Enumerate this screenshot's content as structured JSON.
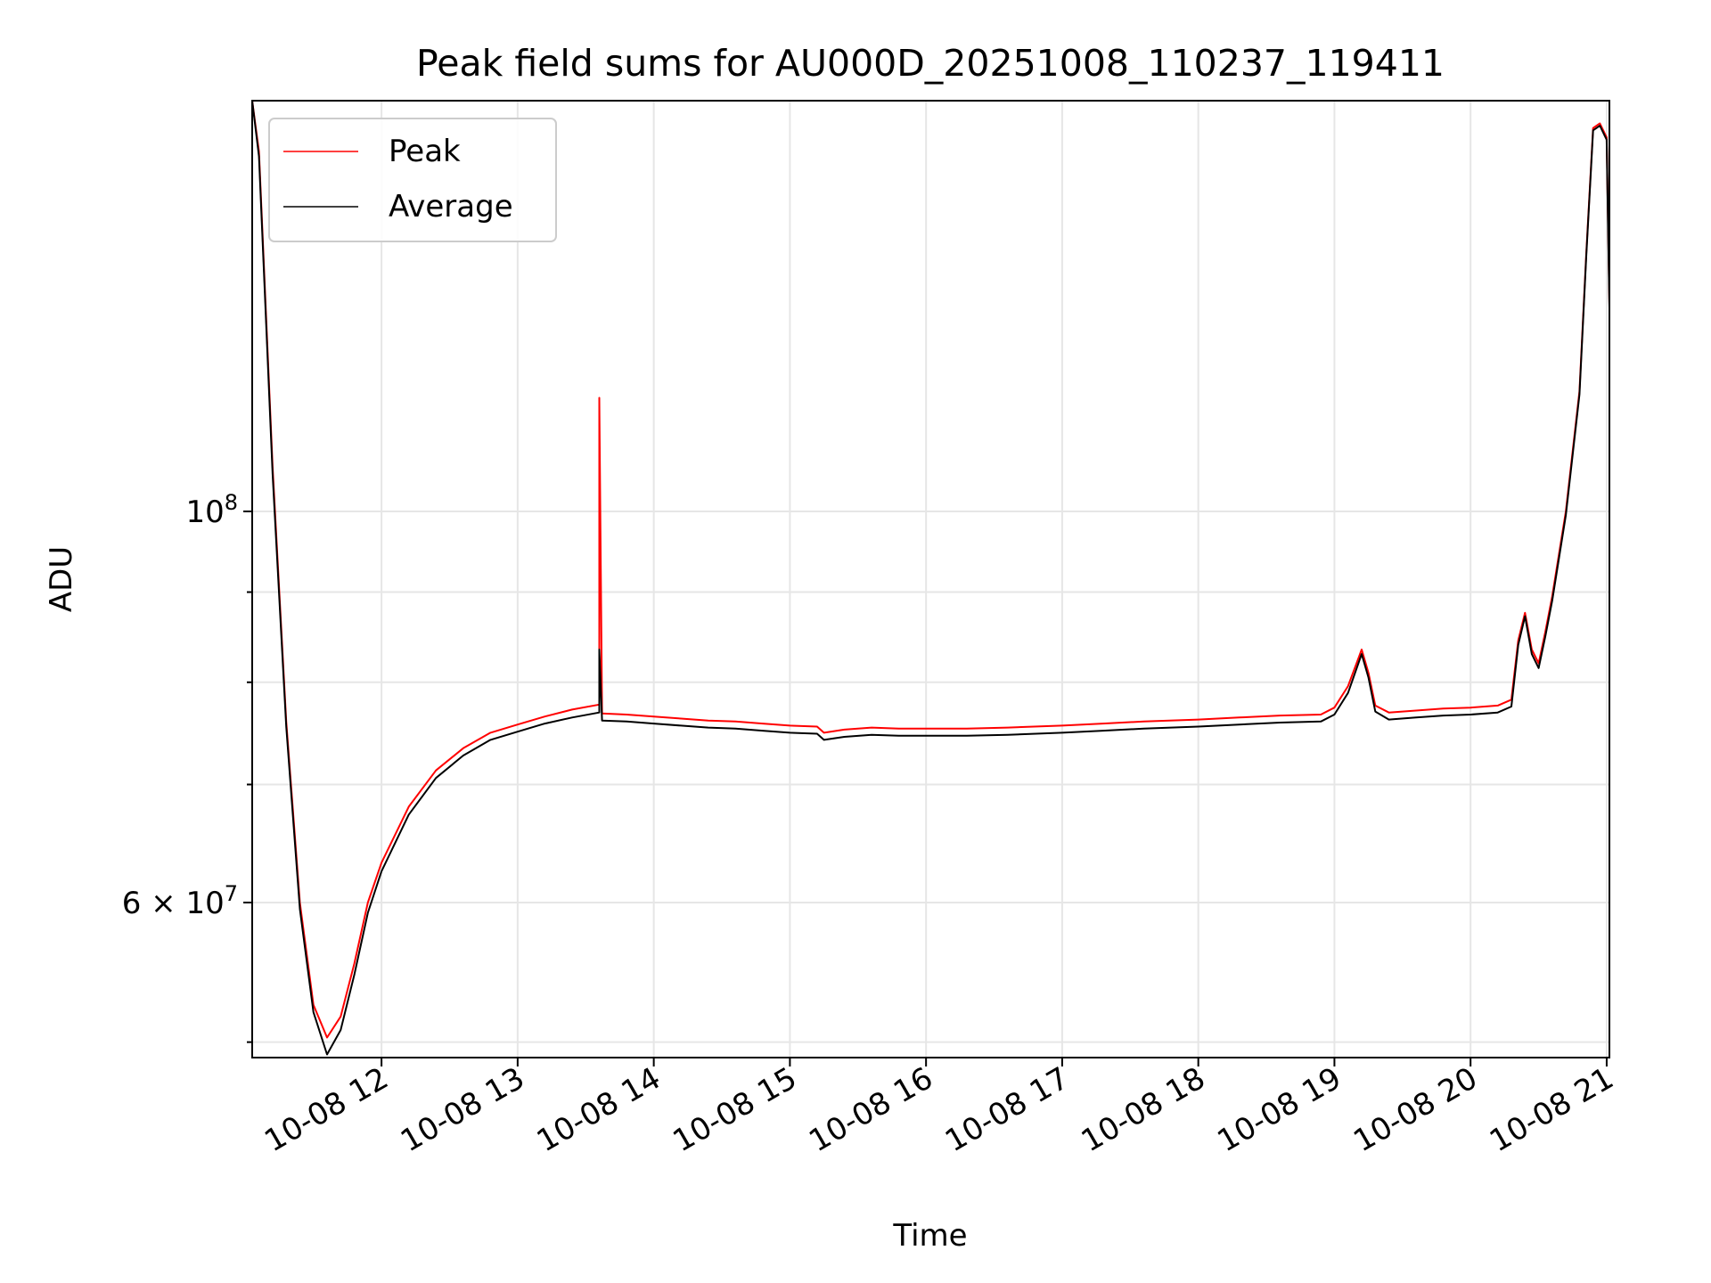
{
  "chart_data": {
    "type": "line",
    "title": "Peak field sums for AU000D_20251008_110237_119411",
    "xlabel": "Time",
    "ylabel": "ADU",
    "y_scale": "log",
    "grid": true,
    "legend_position": "top-left",
    "x_range_hours": [
      11.05,
      21.02
    ],
    "y_range": [
      49000000,
      171000000
    ],
    "x_ticks": [
      {
        "value": 12,
        "label": "10-08 12"
      },
      {
        "value": 13,
        "label": "10-08 13"
      },
      {
        "value": 14,
        "label": "10-08 14"
      },
      {
        "value": 15,
        "label": "10-08 15"
      },
      {
        "value": 16,
        "label": "10-08 16"
      },
      {
        "value": 17,
        "label": "10-08 17"
      },
      {
        "value": 18,
        "label": "10-08 18"
      },
      {
        "value": 19,
        "label": "10-08 19"
      },
      {
        "value": 20,
        "label": "10-08 20"
      },
      {
        "value": 21,
        "label": "10-08 21"
      }
    ],
    "y_major_ticks": [
      {
        "value": 60000000,
        "label": "6×10⁷",
        "mantissa": "6",
        "times": "×",
        "base": "10",
        "exp": "7"
      },
      {
        "value": 100000000,
        "label": "10⁸",
        "base": "10",
        "exp": "8"
      }
    ],
    "y_minor_gridlines": [
      50000000,
      70000000,
      80000000,
      90000000
    ],
    "series": [
      {
        "name": "Peak",
        "color": "#ff0000",
        "x": [
          11.05,
          11.1,
          11.2,
          11.3,
          11.4,
          11.5,
          11.6,
          11.7,
          11.8,
          11.9,
          12.0,
          12.2,
          12.4,
          12.6,
          12.8,
          13.0,
          13.2,
          13.4,
          13.6,
          13.6,
          13.62,
          13.8,
          14.0,
          14.2,
          14.4,
          14.6,
          14.8,
          15.0,
          15.2,
          15.25,
          15.4,
          15.6,
          15.8,
          16.0,
          16.3,
          16.6,
          17.0,
          17.3,
          17.6,
          18.0,
          18.3,
          18.6,
          18.9,
          19.0,
          19.1,
          19.2,
          19.25,
          19.3,
          19.4,
          19.6,
          19.8,
          20.0,
          20.2,
          20.3,
          20.35,
          20.4,
          20.45,
          20.5,
          20.55,
          20.6,
          20.7,
          20.8,
          20.85,
          20.9,
          20.95,
          21.0,
          21.02
        ],
        "y": [
          171000000,
          160000000,
          106000000,
          76000000,
          60000000,
          52500000,
          50300000,
          51700000,
          55400000,
          60000000,
          63200000,
          68000000,
          71300000,
          73400000,
          74900000,
          75700000,
          76500000,
          77200000,
          77700000,
          116000000,
          76800000,
          76700000,
          76500000,
          76300000,
          76100000,
          76000000,
          75800000,
          75600000,
          75500000,
          74900000,
          75200000,
          75400000,
          75300000,
          75300000,
          75300000,
          75400000,
          75600000,
          75800000,
          76000000,
          76200000,
          76400000,
          76600000,
          76700000,
          77400000,
          79600000,
          83500000,
          81000000,
          77600000,
          76900000,
          77100000,
          77300000,
          77400000,
          77600000,
          78200000,
          84500000,
          87600000,
          83500000,
          82000000,
          85500000,
          89500000,
          100000000,
          117000000,
          140000000,
          165000000,
          166000000,
          163000000,
          131000000
        ]
      },
      {
        "name": "Average",
        "color": "#000000",
        "x": [
          11.05,
          11.1,
          11.2,
          11.3,
          11.4,
          11.5,
          11.6,
          11.7,
          11.8,
          11.9,
          12.0,
          12.2,
          12.4,
          12.6,
          12.8,
          13.0,
          13.2,
          13.4,
          13.6,
          13.6,
          13.62,
          13.8,
          14.0,
          14.2,
          14.4,
          14.6,
          14.8,
          15.0,
          15.2,
          15.25,
          15.4,
          15.6,
          15.8,
          16.0,
          16.3,
          16.6,
          17.0,
          17.3,
          17.6,
          18.0,
          18.3,
          18.6,
          18.9,
          19.0,
          19.1,
          19.2,
          19.25,
          19.3,
          19.4,
          19.6,
          19.8,
          20.0,
          20.2,
          20.3,
          20.35,
          20.4,
          20.45,
          20.5,
          20.55,
          20.6,
          20.7,
          20.8,
          20.85,
          20.9,
          20.95,
          21.0,
          21.02
        ],
        "y": [
          171000000,
          159000000,
          105000000,
          75500000,
          59500000,
          52000000,
          49200000,
          50800000,
          54600000,
          59200000,
          62500000,
          67300000,
          70600000,
          72700000,
          74200000,
          75000000,
          75800000,
          76400000,
          76900000,
          83500000,
          76100000,
          76000000,
          75800000,
          75600000,
          75400000,
          75300000,
          75100000,
          74900000,
          74800000,
          74200000,
          74500000,
          74700000,
          74600000,
          74600000,
          74600000,
          74700000,
          74900000,
          75100000,
          75300000,
          75500000,
          75700000,
          75900000,
          76000000,
          76700000,
          78900000,
          83000000,
          80500000,
          77000000,
          76200000,
          76400000,
          76600000,
          76700000,
          76900000,
          77500000,
          84000000,
          87200000,
          83000000,
          81500000,
          85000000,
          89000000,
          99500000,
          116500000,
          139500000,
          164500000,
          165500000,
          162500000,
          130500000
        ]
      }
    ]
  }
}
